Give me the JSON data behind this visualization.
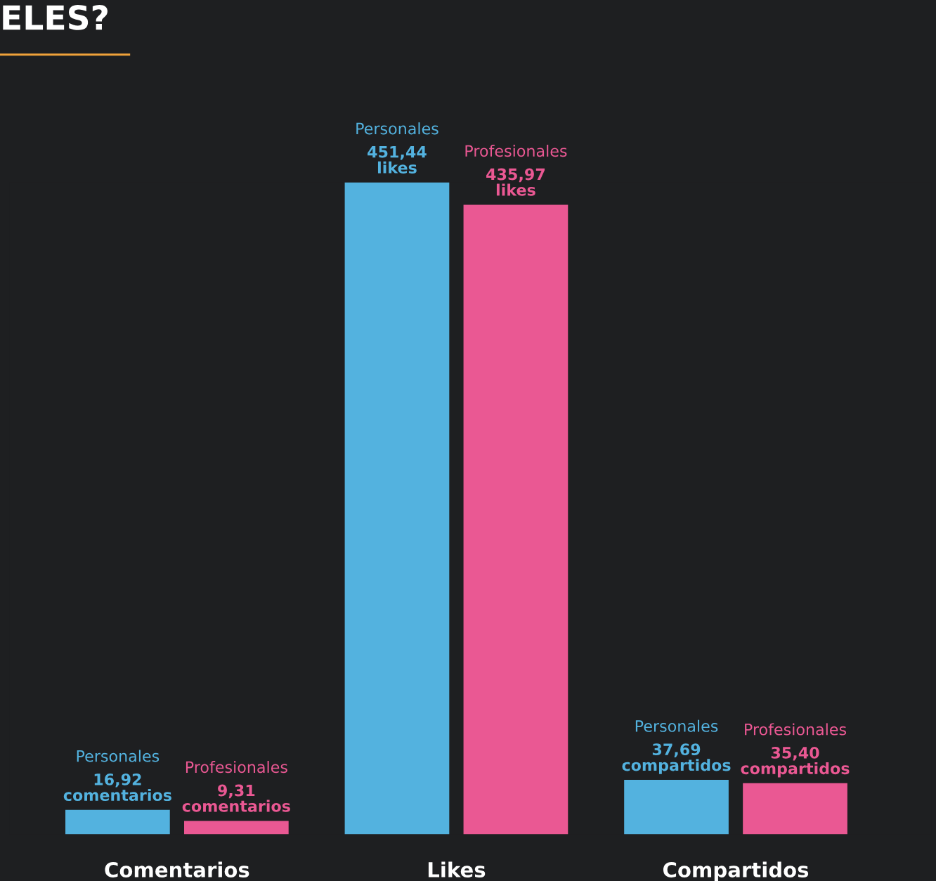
{
  "chart_data": {
    "type": "bar",
    "title": "ELES?",
    "categories": [
      "Comentarios",
      "Likes",
      "Compartidos"
    ],
    "tick_labels": "x",
    "series": [
      {
        "name": "Personales",
        "color": "#53b2df",
        "values": [
          16.92,
          451.44,
          37.69
        ],
        "value_labels": [
          "16,92 comentarios",
          "451,44 likes",
          "37,69 compartidos"
        ]
      },
      {
        "name": "Profesionales",
        "color": "#ea5893",
        "values": [
          9.31,
          435.97,
          35.4
        ],
        "value_labels": [
          "9,31 comentarios",
          "435,97 likes",
          "35,40 compartidos"
        ]
      }
    ]
  }
}
